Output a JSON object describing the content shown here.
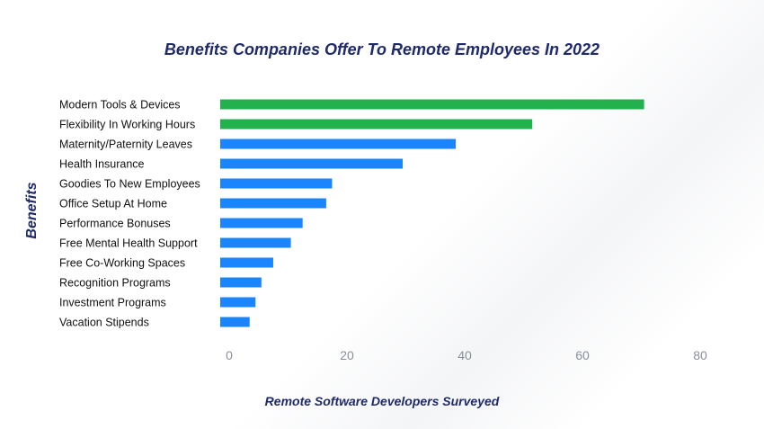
{
  "chart_data": {
    "type": "bar",
    "orientation": "horizontal",
    "title": "Benefits Companies Offer To Remote Employees In 2022",
    "xlabel": "Remote Software Developers Surveyed",
    "ylabel": "Benefits",
    "categories": [
      "Modern Tools & Devices",
      "Flexibility In Working Hours",
      "Maternity/Paternity Leaves",
      "Health Insurance",
      "Goodies To New Employees",
      "Office Setup At Home",
      "Performance Bonuses",
      "Free Mental Health Support",
      "Free Co-Working Spaces",
      "Recognition Programs",
      "Investment Programs",
      "Vacation Stipends"
    ],
    "values": [
      72,
      53,
      40,
      31,
      19,
      18,
      14,
      12,
      9,
      7,
      6,
      5
    ],
    "highlight_color": "#22b14c",
    "bar_color": "#1a85ff",
    "highlighted": [
      0,
      1
    ],
    "xlim": [
      0,
      80
    ],
    "xticks": [
      0,
      20,
      40,
      60,
      80
    ],
    "grid": false,
    "legend": "none"
  }
}
